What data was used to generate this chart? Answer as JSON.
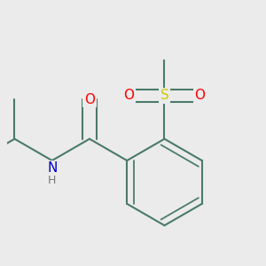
{
  "background_color": "#ebebeb",
  "bond_color": "#4a7a6a",
  "bond_width": 1.5,
  "atom_colors": {
    "O": "#ff0000",
    "N": "#0000cc",
    "S": "#cccc00",
    "H": "#777777"
  },
  "font_size": 10,
  "fig_size": [
    3.0,
    3.0
  ],
  "dpi": 100
}
